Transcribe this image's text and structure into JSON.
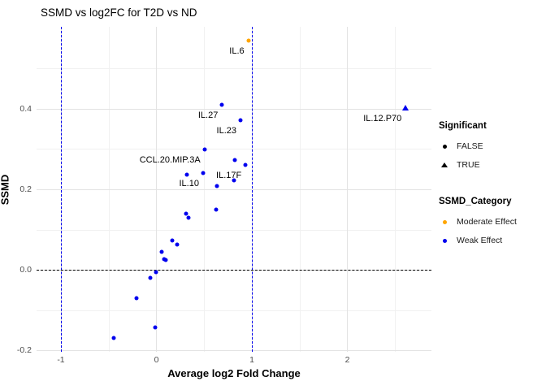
{
  "chart_data": {
    "type": "scatter",
    "title": "SSMD vs log2FC for T2D vs ND",
    "xlabel": "Average log2 Fold Change",
    "ylabel": "SSMD",
    "xlim": [
      -1.2553,
      2.8809
    ],
    "ylim": [
      -0.204,
      0.604
    ],
    "x_ticks": [
      {
        "v": -1,
        "label": "-1"
      },
      {
        "v": 0,
        "label": "0"
      },
      {
        "v": 1,
        "label": "1"
      },
      {
        "v": 2,
        "label": "2"
      }
    ],
    "y_ticks": [
      {
        "v": -0.2,
        "label": "-0.2"
      },
      {
        "v": 0.0,
        "label": "0.0"
      },
      {
        "v": 0.2,
        "label": "0.2"
      },
      {
        "v": 0.4,
        "label": "0.4"
      }
    ],
    "x_minor": [
      -0.5,
      0.5,
      1.5,
      2.5
    ],
    "y_minor": [
      -0.1,
      0.1,
      0.3,
      0.5
    ],
    "grid": true,
    "reference_lines": [
      {
        "axis": "x",
        "value": -1,
        "style": "dashed",
        "color": "#0000ee"
      },
      {
        "axis": "x",
        "value": 1,
        "style": "dashed",
        "color": "#0000ee"
      },
      {
        "axis": "y",
        "value": 0,
        "style": "dashed",
        "color": "#000000"
      }
    ],
    "category_colors": {
      "Moderate Effect": "#ffa500",
      "Weak Effect": "#0000ee"
    },
    "shape_by_significant": {
      "FALSE": "circle",
      "TRUE": "triangle"
    },
    "points": [
      {
        "name": "IL.6",
        "x": 0.963,
        "y": 0.57,
        "significant": "FALSE",
        "category": "Moderate Effect"
      },
      {
        "name": "IL.27",
        "x": 0.688,
        "y": 0.411,
        "significant": "FALSE",
        "category": "Weak Effect"
      },
      {
        "name": "IL.12.P70",
        "x": 2.611,
        "y": 0.403,
        "significant": "TRUE",
        "category": "Weak Effect"
      },
      {
        "name": "IL.23",
        "x": 0.881,
        "y": 0.371,
        "significant": "FALSE",
        "category": "Weak Effect"
      },
      {
        "name": "CCL.20.MIP.3A",
        "x": 0.504,
        "y": 0.299,
        "significant": "FALSE",
        "category": "Weak Effect"
      },
      {
        "name": "",
        "x": 0.821,
        "y": 0.273,
        "significant": "FALSE",
        "category": "Weak Effect"
      },
      {
        "name": "IL.17F",
        "x": 0.934,
        "y": 0.261,
        "significant": "FALSE",
        "category": "Weak Effect"
      },
      {
        "name": "IL.10",
        "x": 0.489,
        "y": 0.24,
        "significant": "FALSE",
        "category": "Weak Effect"
      },
      {
        "name": "",
        "x": 0.319,
        "y": 0.236,
        "significant": "FALSE",
        "category": "Weak Effect"
      },
      {
        "name": "",
        "x": 0.81,
        "y": 0.222,
        "significant": "FALSE",
        "category": "Weak Effect"
      },
      {
        "name": "",
        "x": 0.631,
        "y": 0.208,
        "significant": "FALSE",
        "category": "Weak Effect"
      },
      {
        "name": "",
        "x": 0.625,
        "y": 0.149,
        "significant": "FALSE",
        "category": "Weak Effect"
      },
      {
        "name": "",
        "x": 0.311,
        "y": 0.139,
        "significant": "FALSE",
        "category": "Weak Effect"
      },
      {
        "name": "",
        "x": 0.339,
        "y": 0.129,
        "significant": "FALSE",
        "category": "Weak Effect"
      },
      {
        "name": "",
        "x": 0.163,
        "y": 0.072,
        "significant": "FALSE",
        "category": "Weak Effect"
      },
      {
        "name": "",
        "x": 0.217,
        "y": 0.062,
        "significant": "FALSE",
        "category": "Weak Effect"
      },
      {
        "name": "",
        "x": 0.058,
        "y": 0.044,
        "significant": "FALSE",
        "category": "Weak Effect"
      },
      {
        "name": "",
        "x": 0.078,
        "y": 0.026,
        "significant": "FALSE",
        "category": "Weak Effect"
      },
      {
        "name": "",
        "x": 0.1,
        "y": 0.024,
        "significant": "FALSE",
        "category": "Weak Effect"
      },
      {
        "name": "",
        "x": -0.002,
        "y": -0.006,
        "significant": "FALSE",
        "category": "Weak Effect"
      },
      {
        "name": "",
        "x": -0.066,
        "y": -0.021,
        "significant": "FALSE",
        "category": "Weak Effect"
      },
      {
        "name": "",
        "x": -0.205,
        "y": -0.07,
        "significant": "FALSE",
        "category": "Weak Effect"
      },
      {
        "name": "",
        "x": -0.013,
        "y": -0.143,
        "significant": "FALSE",
        "category": "Weak Effect"
      },
      {
        "name": "",
        "x": -0.45,
        "y": -0.17,
        "significant": "FALSE",
        "category": "Weak Effect"
      }
    ],
    "legend_position": "right"
  },
  "legend": {
    "groups": [
      {
        "title": "Significant",
        "items": [
          {
            "label": "FALSE",
            "shape": "circle",
            "color": "#000000"
          },
          {
            "label": "TRUE",
            "shape": "triangle",
            "color": "#000000"
          }
        ]
      },
      {
        "title": "SSMD_Category",
        "items": [
          {
            "label": "Moderate Effect",
            "shape": "circle",
            "color": "#ffa500"
          },
          {
            "label": "Weak Effect",
            "shape": "circle",
            "color": "#0000ee"
          }
        ]
      }
    ]
  }
}
